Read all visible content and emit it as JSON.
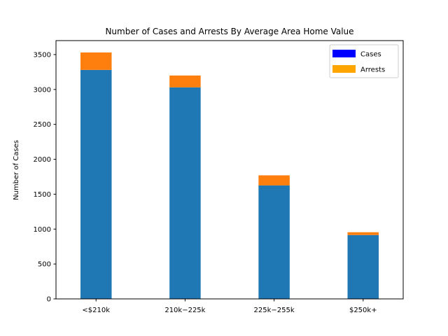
{
  "chart_data": {
    "type": "bar",
    "stacked": true,
    "title": "Number of Cases and Arrests By Average Area Home Value",
    "xlabel": "",
    "ylabel": "Number of Cases",
    "categories": [
      "<$210k",
      "$210k-$225k",
      "$225k-$255k",
      "$250k+"
    ],
    "tick_labels_rendered": [
      "<$210k",
      "210k−225k",
      "225k−255k",
      "$250k+"
    ],
    "series": [
      {
        "name": "Cases",
        "values": [
          3280,
          3030,
          1625,
          915
        ],
        "color": "#1f77b4",
        "legend_color": "#0000ff"
      },
      {
        "name": "Arrests",
        "values": [
          250,
          170,
          145,
          40
        ],
        "color": "#ff7f0e",
        "legend_color": "#ffa500"
      }
    ],
    "ylim": [
      0,
      3700
    ],
    "yticks": [
      0,
      500,
      1000,
      1500,
      2000,
      2500,
      3000,
      3500
    ],
    "grid": false,
    "legend_position": "top-right"
  }
}
